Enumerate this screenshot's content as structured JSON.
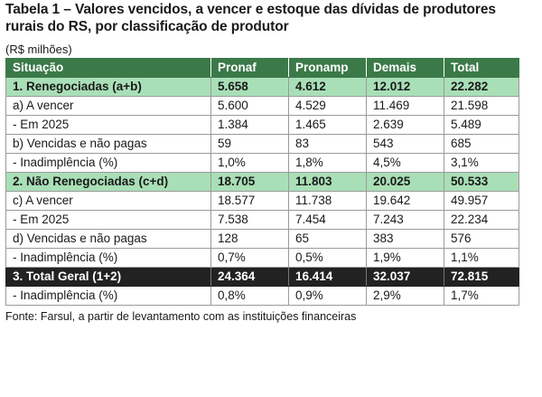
{
  "title_line1": "Tabela 1 – Valores vencidos, a vencer e estoque das dívidas de produtores",
  "title_line2": "rurais do RS, por classificação de produtor",
  "unit": "(R$ milhões)",
  "headers": [
    "Situação",
    "Pronaf",
    "Pronamp",
    "Demais",
    "Total"
  ],
  "rows": [
    {
      "label": "1. Renegociadas (a+b)",
      "values": [
        "5.658",
        "4.612",
        "12.012",
        "22.282"
      ]
    },
    {
      "label": "a) A vencer",
      "values": [
        "5.600",
        "4.529",
        "11.469",
        "21.598"
      ]
    },
    {
      "label": "- Em 2025",
      "values": [
        "1.384",
        "1.465",
        "2.639",
        "5.489"
      ]
    },
    {
      "label": "b) Vencidas e não pagas",
      "values": [
        "59",
        "83",
        "543",
        "685"
      ]
    },
    {
      "label": "- Inadimplência (%)",
      "values": [
        "1,0%",
        "1,8%",
        "4,5%",
        "3,1%"
      ]
    },
    {
      "label": "2. Não Renegociadas (c+d)",
      "values": [
        "18.705",
        "11.803",
        "20.025",
        "50.533"
      ]
    },
    {
      "label": "c) A vencer",
      "values": [
        "18.577",
        "11.738",
        "19.642",
        "49.957"
      ]
    },
    {
      "label": "- Em 2025",
      "values": [
        "7.538",
        "7.454",
        "7.243",
        "22.234"
      ]
    },
    {
      "label": "d) Vencidas e não pagas",
      "values": [
        "128",
        "65",
        "383",
        "576"
      ]
    },
    {
      "label": "- Inadimplência (%)",
      "values": [
        "0,7%",
        "0,5%",
        "1,9%",
        "1,1%"
      ]
    },
    {
      "label": "3. Total Geral (1+2)",
      "values": [
        "24.364",
        "16.414",
        "32.037",
        "72.815"
      ]
    },
    {
      "label": "- Inadimplência (%)",
      "values": [
        "0,8%",
        "0,9%",
        "2,9%",
        "1,7%"
      ]
    }
  ],
  "source": "Fonte: Farsul, a partir de levantamento com as instituições financeiras"
}
